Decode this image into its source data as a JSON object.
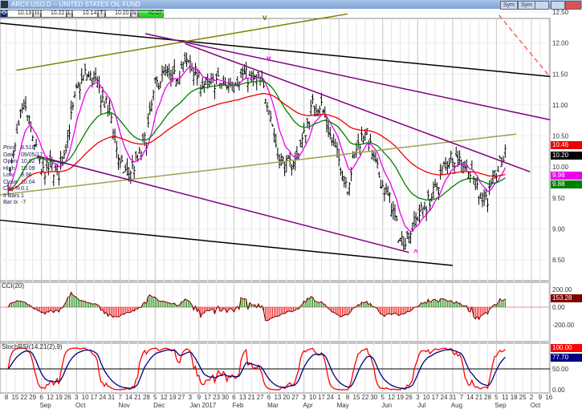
{
  "window": {
    "title": "ARCX:USO.D -- UNITED STATES OIL FUND",
    "buttons": [
      "Sym",
      "Sym"
    ]
  },
  "quote": {
    "O": "10.19",
    "H": "10.22",
    "L": "10.14",
    "T": "10.20",
    "N": "+0.07",
    "labels": [
      "O",
      "H",
      "L",
      "T",
      "N"
    ]
  },
  "info": [
    [
      "Price",
      "8.518"
    ],
    [
      "Date",
      "09/05/17"
    ],
    [
      "Open",
      "10.02"
    ],
    [
      "High",
      "10.09"
    ],
    [
      "Low",
      "9.96"
    ],
    [
      "Close",
      "10.04"
    ],
    [
      "Chg %",
      "0.1"
    ],
    [
      "# Bars",
      "1"
    ],
    [
      "Bar Ix",
      "-7"
    ]
  ],
  "annotations": {
    "top_v": "v",
    "mid_v": "v",
    "bottom_a": "^"
  },
  "colors": {
    "ma_fast": "#ee00ee",
    "ma_mid": "#008000",
    "ma_slow": "#ee0000",
    "cci_pos": "#008000",
    "cci_neg": "#ee0000",
    "stoch_fast": "#ff0000",
    "stoch_slow": "#000080"
  },
  "chart_data": [
    {
      "type": "bar",
      "panel": "price",
      "ylim": [
        8.5,
        12.5
      ],
      "yticks": [
        "12.50",
        "12.00",
        "11.50",
        "11.00",
        "10.50",
        "10.00",
        "9.50",
        "9.00",
        "8.50"
      ],
      "start_week": "2016-08-08",
      "weekly_close": [
        9.6,
        10.3,
        11.0,
        10.5,
        9.9,
        10.0,
        9.9,
        10.5,
        11.2,
        11.5,
        11.4,
        11.1,
        10.8,
        10.0,
        9.9,
        10.1,
        10.5,
        11.3,
        11.5,
        11.4,
        11.6,
        11.7,
        11.4,
        11.3,
        11.4,
        11.3,
        11.4,
        11.5,
        11.4,
        11.4,
        11.0,
        10.2,
        10.0,
        10.1,
        10.5,
        11.0,
        11.0,
        10.5,
        10.1,
        9.7,
        10.3,
        10.6,
        10.1,
        9.7,
        9.4,
        8.8,
        8.9,
        9.2,
        9.4,
        9.6,
        10.0,
        10.2,
        10.1,
        9.9,
        9.6,
        9.5,
        9.9,
        10.2
      ],
      "last_values": {
        "ma_slow": "10.46",
        "close": "10.20",
        "ma_fast": "9.98",
        "ma_mid": "9.88"
      },
      "trendlines": [
        {
          "from": [
            "2016-08-03",
            12.32
          ],
          "to": [
            "2017-10-17",
            11.46
          ],
          "color": "#000000"
        },
        {
          "from": [
            "2016-08-03",
            9.14
          ],
          "to": [
            "2017-07-31",
            8.41
          ],
          "color": "#000000"
        },
        {
          "from": [
            "2016-08-16",
            11.56
          ],
          "to": [
            "2017-05-08",
            12.47
          ],
          "color": "#808000"
        },
        {
          "from": [
            "2016-08-03",
            9.55
          ],
          "to": [
            "2017-09-20",
            10.53
          ],
          "color": "#a0a050"
        },
        {
          "from": [
            "2016-11-27",
            12.15
          ],
          "to": [
            "2017-10-17",
            10.76
          ],
          "color": "#800080"
        },
        {
          "from": [
            "2016-09-01",
            10.18
          ],
          "to": [
            "2017-06-26",
            8.62
          ],
          "color": "#800080"
        },
        {
          "from": [
            "2016-12-29",
            11.99
          ],
          "to": [
            "2017-10-01",
            9.92
          ],
          "color": "#800080"
        },
        {
          "from": [
            "2017-09-06",
            12.45
          ],
          "to": [
            "2017-10-17",
            11.45
          ],
          "color": "#ff6060",
          "dashed": true
        }
      ]
    },
    {
      "type": "bar",
      "panel": "indicator",
      "title": "CCI(20)",
      "ylim": [
        -300,
        250
      ],
      "yticks": [
        "200.00",
        "0.00",
        "-200.00"
      ],
      "last_value": "153.28"
    },
    {
      "type": "line",
      "panel": "indicator",
      "title": "StochRSI(14,21(2),9)",
      "ylim": [
        0,
        100
      ],
      "yticks": [
        "50.00",
        "0.00"
      ],
      "last_values": [
        "100.00",
        "77.70"
      ]
    }
  ],
  "xaxis": {
    "days": [
      "8",
      "15",
      "22",
      "29",
      "6",
      "12",
      "19",
      "26",
      "3",
      "10",
      "17",
      "24",
      "31",
      "7",
      "14",
      "21",
      "28",
      "5",
      "12",
      "19",
      "27",
      "3",
      "9",
      "17",
      "23",
      "30",
      "6",
      "13",
      "21",
      "27",
      "6",
      "13",
      "20",
      "27",
      "3",
      "10",
      "17",
      "24",
      "1",
      "8",
      "15",
      "22",
      "30",
      "5",
      "12",
      "19",
      "26",
      "3",
      "10",
      "17",
      "24",
      "31",
      "7",
      "14",
      "21",
      "28",
      "5",
      "11",
      "18",
      "25",
      "2",
      "9",
      "16"
    ],
    "months": [
      "Sep",
      "Oct",
      "Nov",
      "Dec",
      "Jan 2017",
      "Feb",
      "Mar",
      "Apr",
      "May",
      "Jun",
      "Jul",
      "Aug",
      "Sep",
      "Oct"
    ]
  }
}
